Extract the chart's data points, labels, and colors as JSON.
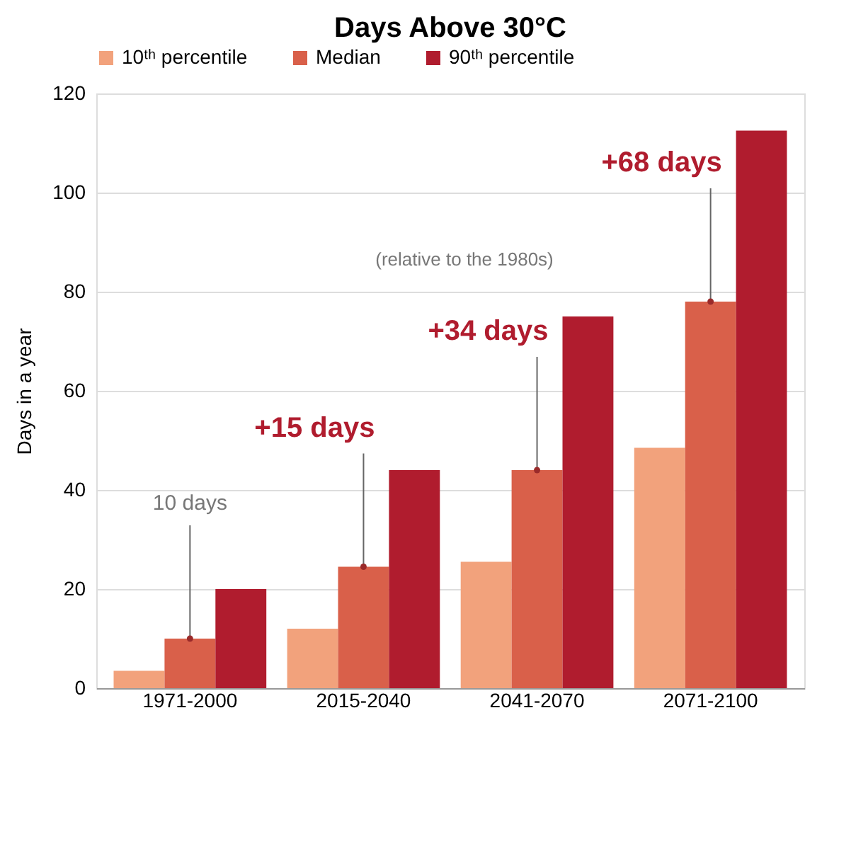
{
  "chart_data": {
    "type": "bar",
    "title": "Days Above 30°C",
    "ylabel": "Days in a year",
    "categories": [
      "1971-2000",
      "2015-2040",
      "2041-2070",
      "2071-2100"
    ],
    "series": [
      {
        "name": "10ᵗʰ percentile",
        "color": "#f2a27c",
        "values": [
          3.5,
          12,
          25.5,
          48.5
        ]
      },
      {
        "name": "Median",
        "color": "#d9604a",
        "values": [
          10,
          24.5,
          44,
          78
        ]
      },
      {
        "name": "90ᵗʰ percentile",
        "color": "#b01c2e",
        "values": [
          20,
          44,
          75,
          112.5
        ]
      }
    ],
    "ylim": [
      0,
      120
    ],
    "yticks": [
      0,
      20,
      40,
      60,
      80,
      100,
      120
    ],
    "grid": "y",
    "legend": "top",
    "annotations": [
      {
        "text": "10 days",
        "x": "1971-2000",
        "y": 10
      },
      {
        "text": "+15 days",
        "x": "2015-2040",
        "y": 24.5
      },
      {
        "text": "+34 days",
        "x": "2041-2070",
        "y": 44
      },
      {
        "text": "+68 days",
        "x": "2071-2100",
        "y": 78
      },
      "(relative to the 1980s)"
    ]
  }
}
